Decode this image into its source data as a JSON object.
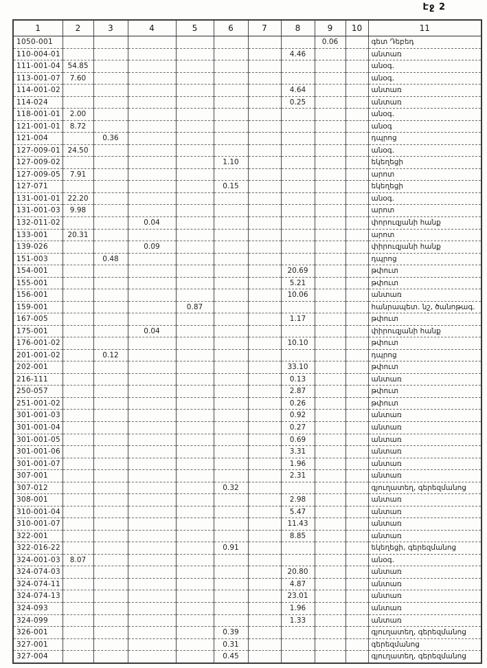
{
  "page": {
    "label": "Էջ 2"
  },
  "table": {
    "headers": [
      "1",
      "2",
      "3",
      "4",
      "5",
      "6",
      "7",
      "8",
      "9",
      "10",
      "11"
    ],
    "rows": [
      [
        "1050-001",
        "",
        "",
        "",
        "",
        "",
        "",
        "",
        "0.06",
        "",
        "գետ Դեբեդ"
      ],
      [
        "110-004-01",
        "",
        "",
        "",
        "",
        "",
        "",
        "4.46",
        "",
        "",
        "անտառ"
      ],
      [
        "111-001-04",
        "54.85",
        "",
        "",
        "",
        "",
        "",
        "",
        "",
        "",
        "անօգ."
      ],
      [
        "113-001-07",
        "7.60",
        "",
        "",
        "",
        "",
        "",
        "",
        "",
        "",
        "անօգ."
      ],
      [
        "114-001-02",
        "",
        "",
        "",
        "",
        "",
        "",
        "4.64",
        "",
        "",
        "անտառ"
      ],
      [
        "114-024",
        "",
        "",
        "",
        "",
        "",
        "",
        "0.25",
        "",
        "",
        "անտառ"
      ],
      [
        "118-001-01",
        "2.00",
        "",
        "",
        "",
        "",
        "",
        "",
        "",
        "",
        "անօգ."
      ],
      [
        "121-001-01",
        "8.72",
        "",
        "",
        "",
        "",
        "",
        "",
        "",
        "",
        "անօգ"
      ],
      [
        "121-004",
        "",
        "0.36",
        "",
        "",
        "",
        "",
        "",
        "",
        "",
        "դպրոց"
      ],
      [
        "127-009-01",
        "24.50",
        "",
        "",
        "",
        "",
        "",
        "",
        "",
        "",
        "անօգ."
      ],
      [
        "127-009-02",
        "",
        "",
        "",
        "",
        "1.10",
        "",
        "",
        "",
        "",
        "եկեղեցի"
      ],
      [
        "127-009-05",
        "7.91",
        "",
        "",
        "",
        "",
        "",
        "",
        "",
        "",
        "արոտ"
      ],
      [
        "127-071",
        "",
        "",
        "",
        "",
        "0.15",
        "",
        "",
        "",
        "",
        "եկեղեցի"
      ],
      [
        "131-001-01",
        "22.20",
        "",
        "",
        "",
        "",
        "",
        "",
        "",
        "",
        "անօգ."
      ],
      [
        "131-001-03",
        "9.98",
        "",
        "",
        "",
        "",
        "",
        "",
        "",
        "",
        "արոտ"
      ],
      [
        "132-011-02",
        "",
        "",
        "0.04",
        "",
        "",
        "",
        "",
        "",
        "",
        "փորուզյանի հանք"
      ],
      [
        "133-001",
        "20.31",
        "",
        "",
        "",
        "",
        "",
        "",
        "",
        "",
        "արոտ"
      ],
      [
        "139-026",
        "",
        "",
        "0.09",
        "",
        "",
        "",
        "",
        "",
        "",
        "փիրուզյանի հանք"
      ],
      [
        "151-003",
        "",
        "0.48",
        "",
        "",
        "",
        "",
        "",
        "",
        "",
        "դպրոց"
      ],
      [
        "154-001",
        "",
        "",
        "",
        "",
        "",
        "",
        "20.69",
        "",
        "",
        "թփուտ"
      ],
      [
        "155-001",
        "",
        "",
        "",
        "",
        "",
        "",
        "5.21",
        "",
        "",
        "թփուտ"
      ],
      [
        "156-001",
        "",
        "",
        "",
        "",
        "",
        "",
        "10.06",
        "",
        "",
        "անտառ"
      ],
      [
        "159-001",
        "",
        "",
        "",
        "0.87",
        "",
        "",
        "",
        "",
        "",
        "հանրապետ. նշ, ծանոթագ."
      ],
      [
        "167-005",
        "",
        "",
        "",
        "",
        "",
        "",
        "1.17",
        "",
        "",
        "թփուտ"
      ],
      [
        "175-001",
        "",
        "",
        "0.04",
        "",
        "",
        "",
        "",
        "",
        "",
        "փիրուզյանի հանք"
      ],
      [
        "176-001-02",
        "",
        "",
        "",
        "",
        "",
        "",
        "10.10",
        "",
        "",
        "թփուտ"
      ],
      [
        "201-001-02",
        "",
        "0.12",
        "",
        "",
        "",
        "",
        "",
        "",
        "",
        "դպրոց"
      ],
      [
        "202-001",
        "",
        "",
        "",
        "",
        "",
        "",
        "33.10",
        "",
        "",
        "թփուտ"
      ],
      [
        "216-111",
        "",
        "",
        "",
        "",
        "",
        "",
        "0.13",
        "",
        "",
        "անտառ"
      ],
      [
        "250-057",
        "",
        "",
        "",
        "",
        "",
        "",
        "2.87",
        "",
        "",
        "թփուտ"
      ],
      [
        "251-001-02",
        "",
        "",
        "",
        "",
        "",
        "",
        "0.26",
        "",
        "",
        "թփուտ"
      ],
      [
        "301-001-03",
        "",
        "",
        "",
        "",
        "",
        "",
        "0.92",
        "",
        "",
        "անտառ"
      ],
      [
        "301-001-04",
        "",
        "",
        "",
        "",
        "",
        "",
        "0.27",
        "",
        "",
        "անտառ"
      ],
      [
        "301-001-05",
        "",
        "",
        "",
        "",
        "",
        "",
        "0.69",
        "",
        "",
        "անտառ"
      ],
      [
        "301-001-06",
        "",
        "",
        "",
        "",
        "",
        "",
        "3.31",
        "",
        "",
        "անտառ"
      ],
      [
        "301-001-07",
        "",
        "",
        "",
        "",
        "",
        "",
        "1.96",
        "",
        "",
        "անտառ"
      ],
      [
        "307-001",
        "",
        "",
        "",
        "",
        "",
        "",
        "2.31",
        "",
        "",
        "անտառ"
      ],
      [
        "307-012",
        "",
        "",
        "",
        "",
        "0.32",
        "",
        "",
        "",
        "",
        "գյուղատեղ, գերեզմանոց"
      ],
      [
        "308-001",
        "",
        "",
        "",
        "",
        "",
        "",
        "2.98",
        "",
        "",
        "անտառ"
      ],
      [
        "310-001-04",
        "",
        "",
        "",
        "",
        "",
        "",
        "5.47",
        "",
        "",
        "անտառ"
      ],
      [
        "310-001-07",
        "",
        "",
        "",
        "",
        "",
        "",
        "11.43",
        "",
        "",
        "անտառ"
      ],
      [
        "322-001",
        "",
        "",
        "",
        "",
        "",
        "",
        "8.85",
        "",
        "",
        "անտառ"
      ],
      [
        "322-016-22",
        "",
        "",
        "",
        "",
        "0.91",
        "",
        "",
        "",
        "",
        "եկեղեցի, գերեզմանոց"
      ],
      [
        "324-001-03",
        "8.07",
        "",
        "",
        "",
        "",
        "",
        "",
        "",
        "",
        "անօգ."
      ],
      [
        "324-074-03",
        "",
        "",
        "",
        "",
        "",
        "",
        "20.80",
        "",
        "",
        "անտառ"
      ],
      [
        "324-074-11",
        "",
        "",
        "",
        "",
        "",
        "",
        "4.87",
        "",
        "",
        "անտառ"
      ],
      [
        "324-074-13",
        "",
        "",
        "",
        "",
        "",
        "",
        "23.01",
        "",
        "",
        "անտառ"
      ],
      [
        "324-093",
        "",
        "",
        "",
        "",
        "",
        "",
        "1.96",
        "",
        "",
        "անտառ"
      ],
      [
        "324-099",
        "",
        "",
        "",
        "",
        "",
        "",
        "1.33",
        "",
        "",
        "անտառ"
      ],
      [
        "326-001",
        "",
        "",
        "",
        "",
        "0.39",
        "",
        "",
        "",
        "",
        "գյուղատեղ, գերեզմանոց"
      ],
      [
        "327-001",
        "",
        "",
        "",
        "",
        "0.31",
        "",
        "",
        "",
        "",
        "գերեզմանոց"
      ],
      [
        "327-004",
        "",
        "",
        "",
        "",
        "0.45",
        "",
        "",
        "",
        "",
        "գյուղատեղ, գերեզմանոց"
      ]
    ]
  }
}
